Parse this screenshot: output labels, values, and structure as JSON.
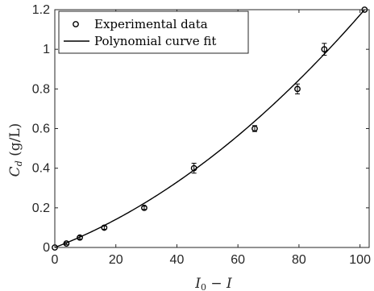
{
  "chart_data": {
    "type": "scatter",
    "xlabel": "I0 − I",
    "ylabel": "Cd (g/L)",
    "xlim": [
      0,
      103
    ],
    "ylim": [
      0,
      1.2
    ],
    "xticks": [
      0,
      20,
      40,
      60,
      80,
      100
    ],
    "yticks": [
      0,
      0.2,
      0.4,
      0.6,
      0.8,
      1.0,
      1.2
    ],
    "xtick_labels": [
      "0",
      "20",
      "40",
      "60",
      "80",
      "100"
    ],
    "ytick_labels": [
      "0",
      "0.2",
      "0.4",
      "0.6",
      "0.8",
      "1",
      "1.2"
    ],
    "grid": false,
    "legend_position": "top-left",
    "series": [
      {
        "name": "Experimental data",
        "style": "markers-with-errorbars",
        "x": [
          0,
          3.8,
          8.2,
          16.2,
          29.3,
          45.6,
          65.5,
          79.5,
          88.3,
          101.5
        ],
        "y": [
          0,
          0.02,
          0.05,
          0.1,
          0.2,
          0.4,
          0.6,
          0.8,
          1.0,
          1.2
        ],
        "error": [
          0,
          0.005,
          0.008,
          0.008,
          0.008,
          0.025,
          0.015,
          0.025,
          0.03,
          0
        ]
      },
      {
        "name": "Polynomial curve fit",
        "style": "line",
        "fit_coefficients": [
          0.0,
          0.005906,
          5.83e-05
        ]
      }
    ]
  },
  "colors": {
    "axis": "#262626",
    "series": "#000000",
    "background": "#ffffff"
  }
}
